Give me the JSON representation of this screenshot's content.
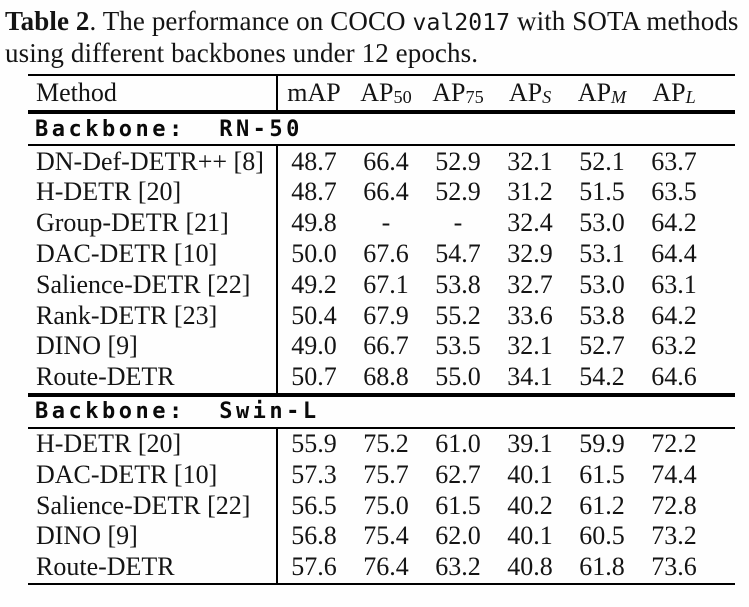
{
  "caption": {
    "label": "Table 2",
    "body_1": ". The performance on COCO ",
    "mono": "val2017",
    "body_2": " with SOTA methods",
    "body_3": "using different backbones under 12 epochs."
  },
  "table": {
    "method_header": "Method",
    "columns": [
      {
        "base": "mAP",
        "sub": "",
        "italic_sub": false
      },
      {
        "base": "AP",
        "sub": "50",
        "italic_sub": false
      },
      {
        "base": "AP",
        "sub": "75",
        "italic_sub": false
      },
      {
        "base": "AP",
        "sub": "S",
        "italic_sub": true
      },
      {
        "base": "AP",
        "sub": "M",
        "italic_sub": true
      },
      {
        "base": "AP",
        "sub": "L",
        "italic_sub": true
      }
    ],
    "sections": [
      {
        "title": "Backbone:  RN-50",
        "rows": [
          {
            "method": "DN-Def-DETR++ [8]",
            "values": [
              "48.7",
              "66.4",
              "52.9",
              "32.1",
              "52.1",
              "63.7"
            ]
          },
          {
            "method": "H-DETR [20]",
            "values": [
              "48.7",
              "66.4",
              "52.9",
              "31.2",
              "51.5",
              "63.5"
            ]
          },
          {
            "method": "Group-DETR [21]",
            "values": [
              "49.8",
              "-",
              "-",
              "32.4",
              "53.0",
              "64.2"
            ]
          },
          {
            "method": "DAC-DETR [10]",
            "values": [
              "50.0",
              "67.6",
              "54.7",
              "32.9",
              "53.1",
              "64.4"
            ]
          },
          {
            "method": "Salience-DETR [22]",
            "values": [
              "49.2",
              "67.1",
              "53.8",
              "32.7",
              "53.0",
              "63.1"
            ]
          },
          {
            "method": "Rank-DETR [23]",
            "values": [
              "50.4",
              "67.9",
              "55.2",
              "33.6",
              "53.8",
              "64.2"
            ]
          },
          {
            "method": "DINO [9]",
            "values": [
              "49.0",
              "66.7",
              "53.5",
              "32.1",
              "52.7",
              "63.2"
            ]
          },
          {
            "method": "Route-DETR",
            "values": [
              "50.7",
              "68.8",
              "55.0",
              "34.1",
              "54.2",
              "64.6"
            ]
          }
        ]
      },
      {
        "title": "Backbone:  Swin-L",
        "rows": [
          {
            "method": "H-DETR [20]",
            "values": [
              "55.9",
              "75.2",
              "61.0",
              "39.1",
              "59.9",
              "72.2"
            ]
          },
          {
            "method": "DAC-DETR [10]",
            "values": [
              "57.3",
              "75.7",
              "62.7",
              "40.1",
              "61.5",
              "74.4"
            ]
          },
          {
            "method": "Salience-DETR [22]",
            "values": [
              "56.5",
              "75.0",
              "61.5",
              "40.2",
              "61.2",
              "72.8"
            ]
          },
          {
            "method": "DINO [9]",
            "values": [
              "56.8",
              "75.4",
              "62.0",
              "40.1",
              "60.5",
              "73.2"
            ]
          },
          {
            "method": "Route-DETR",
            "values": [
              "57.6",
              "76.4",
              "63.2",
              "40.8",
              "61.8",
              "73.6"
            ]
          }
        ]
      }
    ]
  },
  "colors": {
    "background": "#fefefe",
    "text": "#141414",
    "rule": "#000000"
  }
}
